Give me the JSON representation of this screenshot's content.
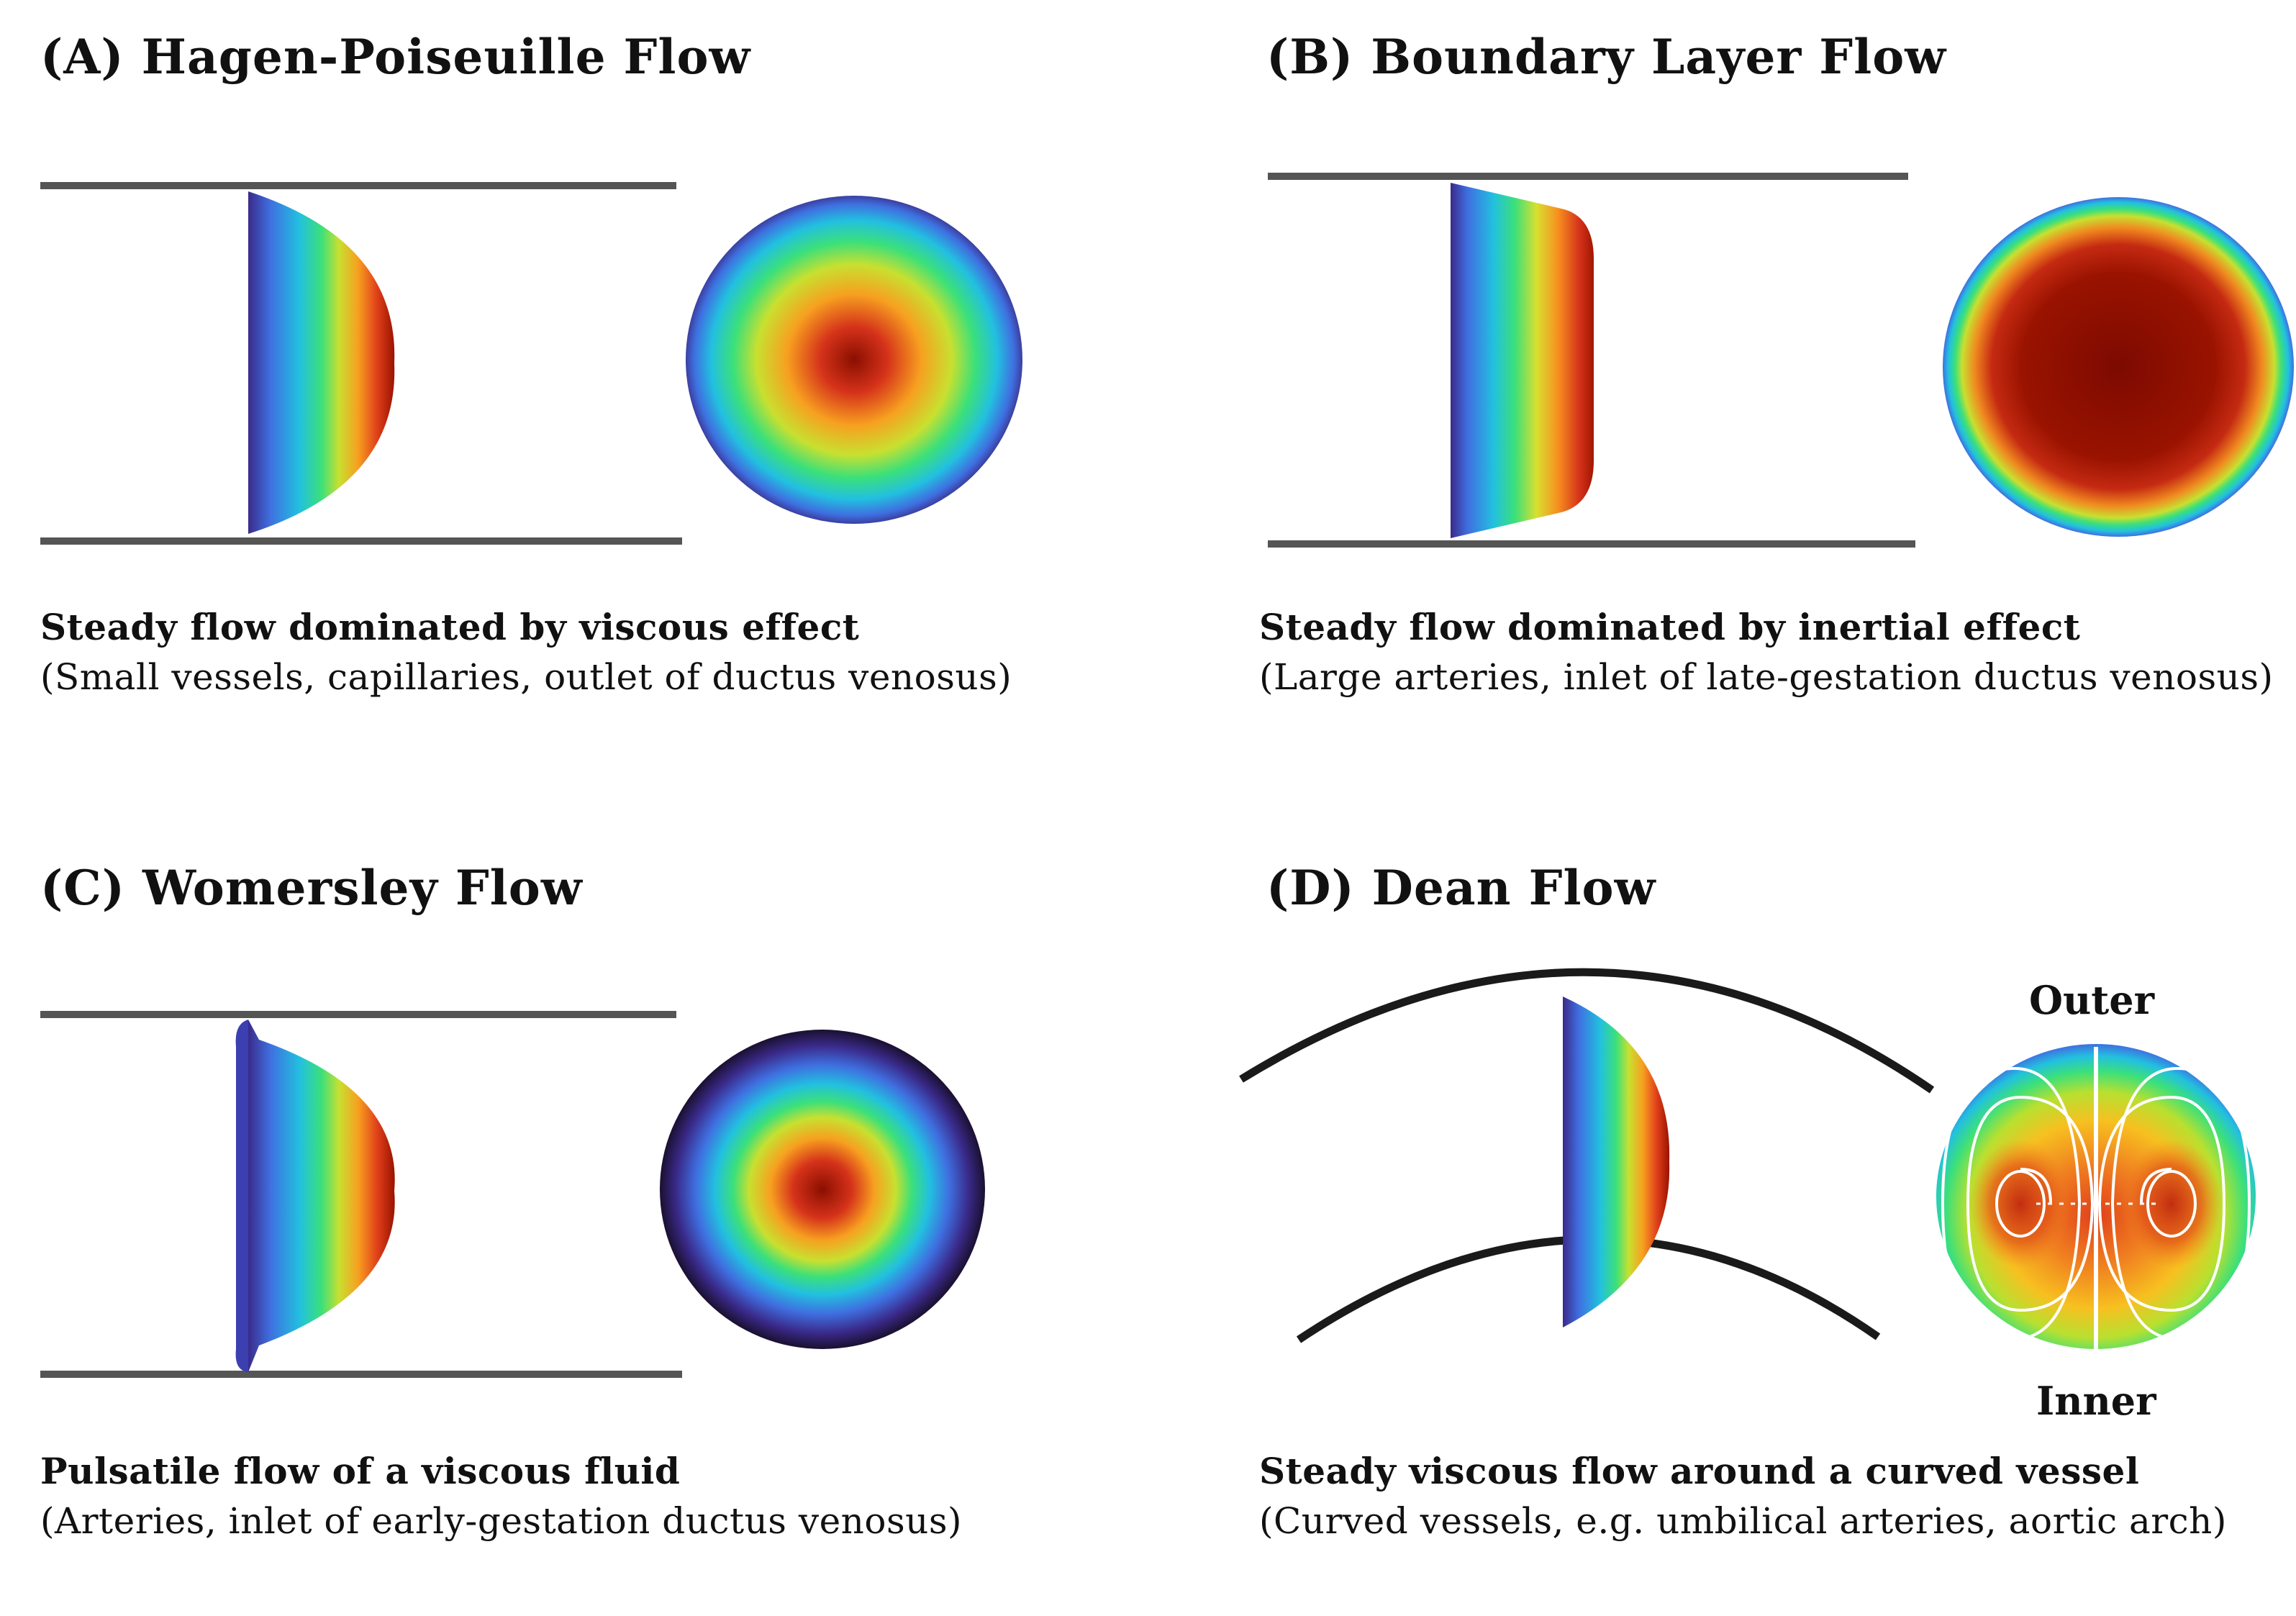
{
  "panels": {
    "a": {
      "title": "(A) Hagen-Poiseuille Flow",
      "caption_bold": "Steady flow dominated by viscous effect",
      "caption": "(Small vessels, capillaries, outlet of ductus venosus)"
    },
    "b": {
      "title": "(B) Boundary Layer Flow",
      "caption_bold": "Steady flow dominated by inertial effect",
      "caption": "(Large arteries, inlet of late-gestation ductus venosus)"
    },
    "c": {
      "title": "(C) Womersley Flow",
      "caption_bold": "Pulsatile flow of a viscous fluid",
      "caption": "(Arteries, inlet of early-gestation ductus venosus)"
    },
    "d": {
      "title": "(D) Dean Flow",
      "caption_bold": "Steady viscous flow around a curved vessel",
      "caption": "(Curved vessels, e.g. umbilical arteries, aortic arch)",
      "label_outer": "Outer",
      "label_inner": "Inner"
    }
  },
  "colors": {
    "wall": "#555555",
    "curved_wall": "#1a1a1a",
    "streamline": "#ffffff",
    "colormap": [
      "#3b2a8a",
      "#3f6fe0",
      "#22c0e0",
      "#3be07a",
      "#c8e030",
      "#f7a020",
      "#e0401a",
      "#9a1200"
    ]
  }
}
